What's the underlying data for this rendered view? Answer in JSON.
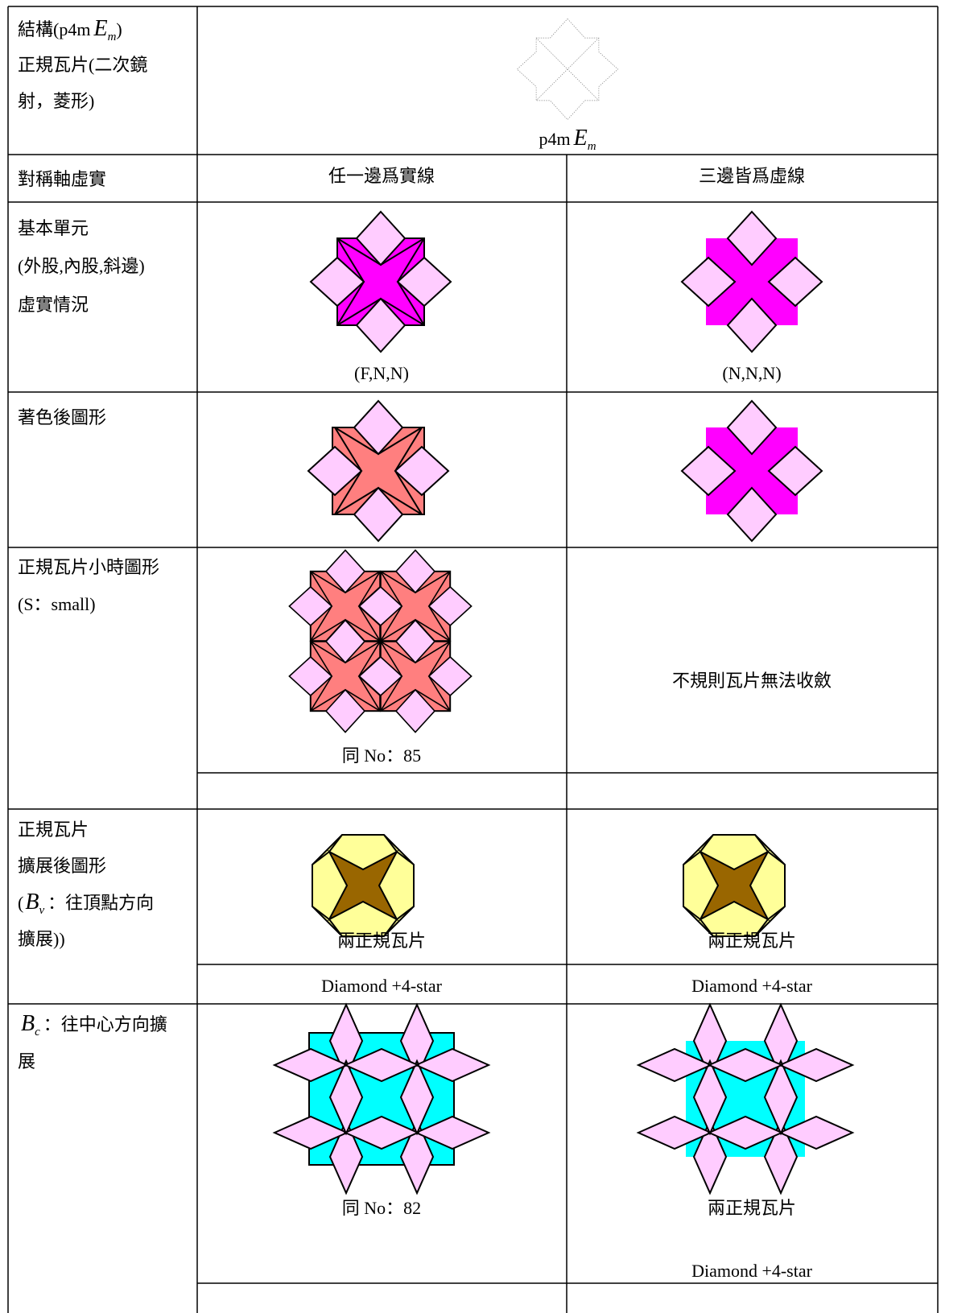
{
  "structure": {
    "label": [
      "結構(p4m",
      "E",
      "m",
      ")",
      "正規瓦片(二次鏡",
      "射，菱形)"
    ],
    "caption": [
      "p4m",
      "E",
      "m"
    ]
  },
  "rows": [
    {
      "label": [
        "對稱軸虛實"
      ],
      "col1": [
        "任一邊爲實線"
      ],
      "col2": [
        "三邊皆爲虛線"
      ]
    },
    {
      "label": [
        "基本單元",
        "(外股,內股,斜邊)",
        "虛實情況"
      ],
      "col1": [
        "(F,N,N)"
      ],
      "col2": [
        "(N,N,N)"
      ]
    },
    {
      "label": [
        "著色後圖形"
      ]
    },
    {
      "label": [
        "正規瓦片小時圖形",
        "(S：small)"
      ],
      "col1": [
        "同 No：85"
      ],
      "col2": [
        "不規則瓦片無法收斂"
      ]
    },
    {
      "label": [
        "正規瓦片",
        "擴展後圖形",
        "(",
        "B",
        "v",
        "：往頂點方向",
        "擴展))"
      ],
      "col1": [
        "兩正規瓦片",
        "Diamond +4-star"
      ],
      "col2": [
        "兩正規瓦片",
        "Diamond +4-star"
      ]
    },
    {
      "label": [
        "B",
        "c",
        "：往中心方向擴",
        "展"
      ],
      "col1": [
        "同 No：82"
      ],
      "col2": [
        "兩正規瓦片",
        "Diamond +4-star"
      ]
    }
  ]
}
